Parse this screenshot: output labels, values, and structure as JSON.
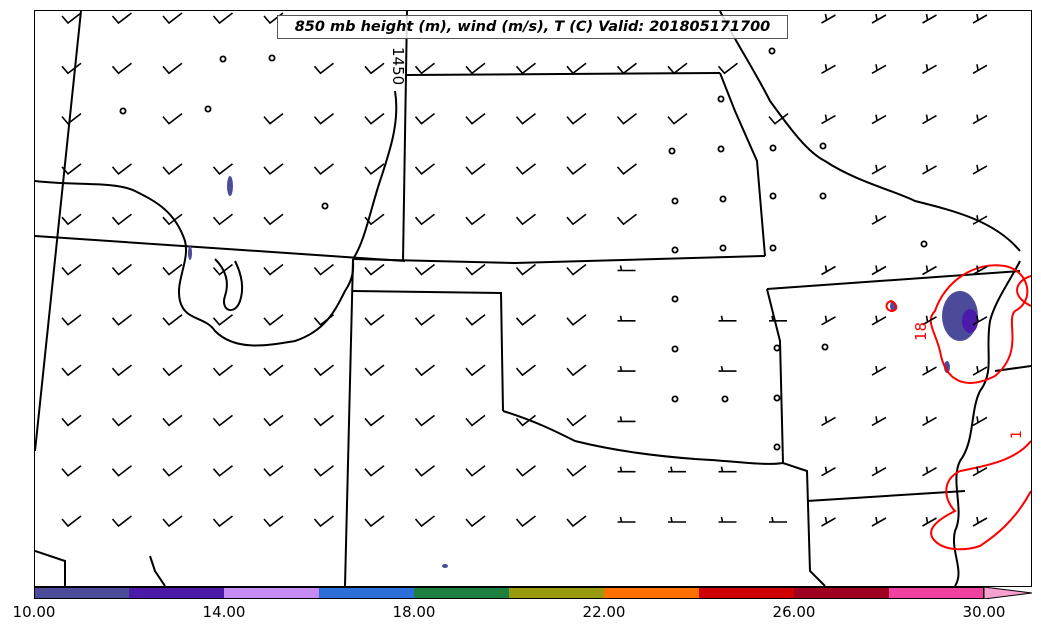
{
  "title": "850 mb height (m), wind (m/s), T (C) Valid: 201805171700",
  "contour_labels": {
    "height": "1450",
    "temperature_18": "18",
    "temperature_edge": "1"
  },
  "colorbar": {
    "tick_labels": [
      "10.00",
      "14.00",
      "18.00",
      "22.00",
      "26.00",
      "30.00"
    ],
    "colors": [
      "#4b4b9a",
      "#4b1aa8",
      "#c48cf4",
      "#2e6ed8",
      "#1e8040",
      "#9a9a10",
      "#ff7000",
      "#d00000",
      "#a00020",
      "#f040a0",
      "#f8a0d0"
    ]
  },
  "colors": {
    "state_lines": "#000000",
    "temperature_contour": "#ff0000",
    "precip_light": "#4b4b9a",
    "precip_heavy": "#4b1aa8"
  }
}
